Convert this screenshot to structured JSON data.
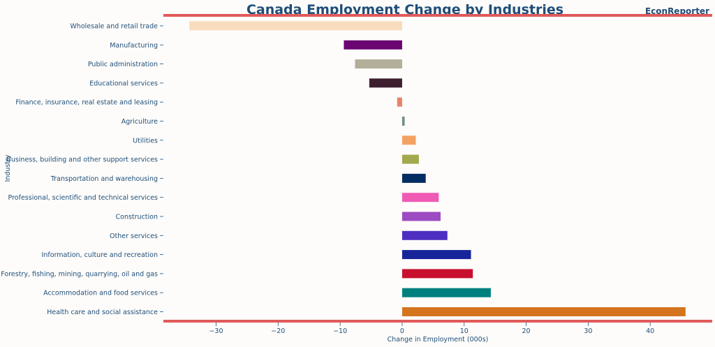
{
  "brand": "EconReporter",
  "colors": {
    "text": "#1f4e79",
    "accent_line": "#e05a5a"
  },
  "chart_data": {
    "type": "bar",
    "orientation": "horizontal",
    "title": "Canada Employment Change by Industries",
    "xlabel": "Change in Employment (000s)",
    "ylabel": "Industry",
    "xlim": [
      -38.5,
      50
    ],
    "xticks": [
      -30,
      -20,
      -10,
      0,
      10,
      20,
      30,
      40
    ],
    "xtick_labels": [
      "−30",
      "−20",
      "−10",
      "0",
      "10",
      "20",
      "30",
      "40"
    ],
    "grid": false,
    "categories": [
      "Wholesale and retail trade",
      "Manufacturing",
      "Public administration",
      "Educational services",
      "Finance, insurance, real estate and leasing",
      "Agriculture",
      "Utilities",
      "Business, building and other support services",
      "Transportation and warehousing",
      "Professional, scientific and technical services",
      "Construction",
      "Other services",
      "Information, culture and recreation",
      "Forestry, fishing, mining, quarrying, oil and gas",
      "Accommodation and food services",
      "Health care and social assistance"
    ],
    "values": [
      -34.3,
      -9.4,
      -7.6,
      -5.3,
      -0.8,
      0.4,
      2.2,
      2.7,
      3.8,
      5.9,
      6.2,
      7.3,
      11.1,
      11.4,
      14.3,
      45.7
    ],
    "bar_colors": [
      "#f9dbbd",
      "#6a0572",
      "#b2ae9a",
      "#3d1f2f",
      "#e8826a",
      "#6b9080",
      "#f4a261",
      "#a3a84e",
      "#002d62",
      "#ef5bb4",
      "#9d4bc2",
      "#4e2fc1",
      "#16259a",
      "#c8102e",
      "#007f7f",
      "#d4751e"
    ]
  }
}
